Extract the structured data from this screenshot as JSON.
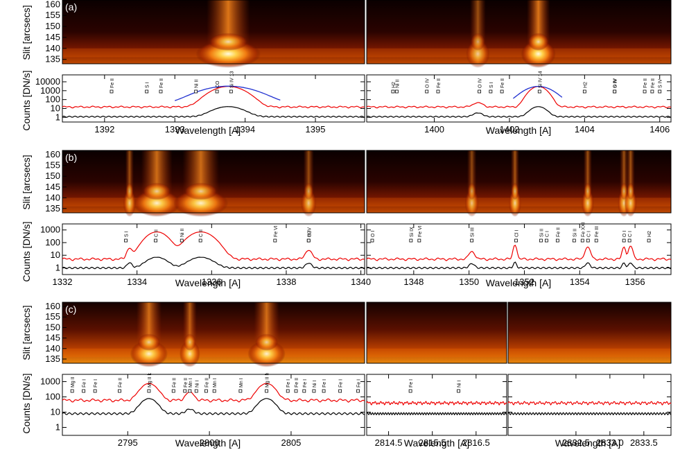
{
  "figure": {
    "y_label_image": "Slit [arcsecs]",
    "y_label_spectrum": "Counts [DN/s]",
    "x_label": "Wavelength [A]"
  },
  "chart_data": [
    {
      "id": "a",
      "type": "line",
      "panel_label": "(a)",
      "slit_ticks": [
        135,
        140,
        145,
        150,
        155,
        160
      ],
      "slit_range": [
        133,
        162
      ],
      "y_scale": "log",
      "y_ticks": [
        "1",
        "10",
        "100",
        "1000",
        "10000"
      ],
      "ylim": [
        0.3,
        60000
      ],
      "xlabel": "Wavelength [A]",
      "ylabel": "Counts [DN/s]",
      "subpanels": [
        {
          "xlim": [
            1391.4,
            1395.7
          ],
          "x_ticks": [
            "1392",
            "1393",
            "1394",
            "1395"
          ],
          "lines": [
            {
              "label": "Fe II",
              "x": 1392.1
            },
            {
              "label": "S I",
              "x": 1392.6
            },
            {
              "label": "Fe II",
              "x": 1392.8
            },
            {
              "label": "Ni II",
              "x": 1393.3
            },
            {
              "label": "CO",
              "x": 1393.6
            },
            {
              "label": "Si IV 13",
              "x": 1393.8
            }
          ],
          "emission": [
            {
              "c": 1393.76,
              "w": 0.22,
              "red": 3000,
              "black": 15
            }
          ],
          "red_base": 15,
          "black_base": 1.2,
          "fit": {
            "c": 1393.76,
            "w": 0.36,
            "amp": 3200,
            "range": [
              1393.0,
              1394.5
            ]
          }
        },
        {
          "xlim": [
            1398.2,
            1406.3
          ],
          "x_ticks": [
            "1400",
            "1402",
            "1404",
            "1406"
          ],
          "lines": [
            {
              "label": "H2",
              "x": 1398.9
            },
            {
              "label": "Ni II",
              "x": 1399.0
            },
            {
              "label": "O IV",
              "x": 1399.8
            },
            {
              "label": "Fe II",
              "x": 1400.1
            },
            {
              "label": "O IV",
              "x": 1401.2
            },
            {
              "label": "S I",
              "x": 1401.5
            },
            {
              "label": "Fe II",
              "x": 1401.8
            },
            {
              "label": "Si IV 14",
              "x": 1402.8
            },
            {
              "label": "H2",
              "x": 1404.0
            },
            {
              "label": "S IV",
              "x": 1404.8
            },
            {
              "label": "O IV",
              "x": 1404.8
            },
            {
              "label": "Fe II",
              "x": 1405.6
            },
            {
              "label": "Fe II",
              "x": 1405.8
            },
            {
              "label": "S IV",
              "x": 1406.0
            }
          ],
          "emission": [
            {
              "c": 1402.77,
              "w": 0.22,
              "red": 3000,
              "black": 15
            },
            {
              "c": 1401.16,
              "w": 0.15,
              "red": 30,
              "black": 2.0
            }
          ],
          "red_base": 15,
          "black_base": 1.2,
          "fit": {
            "c": 1402.77,
            "w": 0.36,
            "amp": 3000,
            "range": [
              1402.1,
              1403.4
            ]
          }
        }
      ]
    },
    {
      "id": "b",
      "type": "line",
      "panel_label": "(b)",
      "slit_ticks": [
        135,
        140,
        145,
        150,
        155,
        160
      ],
      "slit_range": [
        133,
        162
      ],
      "y_scale": "log",
      "y_ticks": [
        "1",
        "10",
        "100",
        "1000"
      ],
      "ylim": [
        0.3,
        3000
      ],
      "xlabel": "Wavelength [A]",
      "ylabel": "Counts [DN/s]",
      "subpanels": [
        {
          "xlim": [
            1332.0,
            1340.1
          ],
          "x_ticks": [
            "1332",
            "1334",
            "1336",
            "1338",
            "1340"
          ],
          "lines": [
            {
              "label": "S I",
              "x": 1333.7
            },
            {
              "label": "C II",
              "x": 1334.5
            },
            {
              "label": "Ni II",
              "x": 1335.2
            },
            {
              "label": "C II",
              "x": 1335.7
            },
            {
              "label": "Fe VI",
              "x": 1337.7
            },
            {
              "label": "H2",
              "x": 1338.6
            },
            {
              "label": "O IV",
              "x": 1338.6
            }
          ],
          "emission": [
            {
              "c": 1334.53,
              "w": 0.3,
              "red": 700,
              "black": 6
            },
            {
              "c": 1335.71,
              "w": 0.35,
              "red": 700,
              "black": 6
            },
            {
              "c": 1333.8,
              "w": 0.08,
              "red": 30,
              "black": 1.6
            },
            {
              "c": 1338.6,
              "w": 0.1,
              "red": 20,
              "black": 1.4
            }
          ],
          "red_base": 5,
          "black_base": 1.0
        },
        {
          "xlim": [
            1346.3,
            1357.3
          ],
          "x_ticks": [
            "1348",
            "1350",
            "1352",
            "1354",
            "1356"
          ],
          "lines": [
            {
              "label": "O I",
              "x": 1346.5
            },
            {
              "label": "Si IX",
              "x": 1347.9
            },
            {
              "label": "Fe VI",
              "x": 1348.2
            },
            {
              "label": "Si III",
              "x": 1350.1
            },
            {
              "label": "Cl I",
              "x": 1351.7
            },
            {
              "label": "Si II",
              "x": 1352.6
            },
            {
              "label": "C I",
              "x": 1352.8
            },
            {
              "label": "Fe II",
              "x": 1353.2
            },
            {
              "label": "Si II",
              "x": 1353.8
            },
            {
              "label": "Fe XXI",
              "x": 1354.1
            },
            {
              "label": "C I",
              "x": 1354.3
            },
            {
              "label": "Fe III",
              "x": 1354.6
            },
            {
              "label": "O I",
              "x": 1355.6
            },
            {
              "label": "C I",
              "x": 1355.8
            },
            {
              "label": "H2",
              "x": 1356.5
            }
          ],
          "emission": [
            {
              "c": 1351.66,
              "w": 0.07,
              "red": 60,
              "black": 1.8
            },
            {
              "c": 1354.29,
              "w": 0.1,
              "red": 40,
              "black": 1.5
            },
            {
              "c": 1355.6,
              "w": 0.07,
              "red": 40,
              "black": 1.5
            },
            {
              "c": 1355.84,
              "w": 0.08,
              "red": 50,
              "black": 1.6
            },
            {
              "c": 1350.1,
              "w": 0.12,
              "red": 15,
              "black": 1.2
            }
          ],
          "red_base": 5,
          "black_base": 1.0
        }
      ]
    },
    {
      "id": "c",
      "type": "line",
      "panel_label": "(c)",
      "slit_ticks": [
        135,
        140,
        145,
        150,
        155,
        160
      ],
      "slit_range": [
        133,
        162
      ],
      "y_scale": "log",
      "y_ticks": [
        "1",
        "10",
        "100",
        "1000"
      ],
      "ylim": [
        0.3,
        3000
      ],
      "xlabel": "Wavelength [A]",
      "ylabel": "Counts [DN/s]",
      "subpanels": [
        {
          "xlim": [
            2791.0,
            2809.5
          ],
          "x_ticks": [
            "2795",
            "2800",
            "2805"
          ],
          "lines": [
            {
              "label": "Mg II",
              "x": 2791.6
            },
            {
              "label": "Fe I",
              "x": 2792.3
            },
            {
              "label": "Fe I",
              "x": 2793.0
            },
            {
              "label": "Fe II",
              "x": 2794.5
            },
            {
              "label": "Mg II k",
              "x": 2796.3
            },
            {
              "label": "Fe II",
              "x": 2797.8
            },
            {
              "label": "Fe II",
              "x": 2798.5
            },
            {
              "label": "Mn I",
              "x": 2798.8
            },
            {
              "label": "Ni I",
              "x": 2799.2
            },
            {
              "label": "Fe II",
              "x": 2799.8
            },
            {
              "label": "Mn I",
              "x": 2800.3
            },
            {
              "label": "Mn I",
              "x": 2801.9
            },
            {
              "label": "Mg II h",
              "x": 2803.5
            },
            {
              "label": "Fe I",
              "x": 2804.8
            },
            {
              "label": "Fe II",
              "x": 2805.3
            },
            {
              "label": "Fe I",
              "x": 2805.8
            },
            {
              "label": "Ni I",
              "x": 2806.4
            },
            {
              "label": "Fe I",
              "x": 2807.0
            },
            {
              "label": "Fe I",
              "x": 2808.0
            },
            {
              "label": "Fe I",
              "x": 2809.1
            }
          ],
          "emission": [
            {
              "c": 2796.3,
              "w": 0.55,
              "red": 700,
              "black": 70
            },
            {
              "c": 2803.5,
              "w": 0.55,
              "red": 700,
              "black": 70
            },
            {
              "c": 2798.8,
              "w": 0.3,
              "red": 150,
              "black": 8
            }
          ],
          "red_base": 60,
          "black_base": 8
        },
        {
          "xlim": [
            2814.0,
            2817.2
          ],
          "x_ticks": [
            "2814.5",
            "2815.5",
            "2816.5"
          ],
          "lines": [
            {
              "label": "Fe I",
              "x": 2815.0
            },
            {
              "label": "Ni I",
              "x": 2816.1
            }
          ],
          "emission": [],
          "red_base": 40,
          "black_base": 8
        },
        {
          "xlim": [
            2831.5,
            2833.9
          ],
          "x_ticks": [
            "2832.5",
            "2833.0",
            "2833.5"
          ],
          "lines": [],
          "emission": [],
          "red_base": 40,
          "black_base": 8
        }
      ]
    }
  ]
}
